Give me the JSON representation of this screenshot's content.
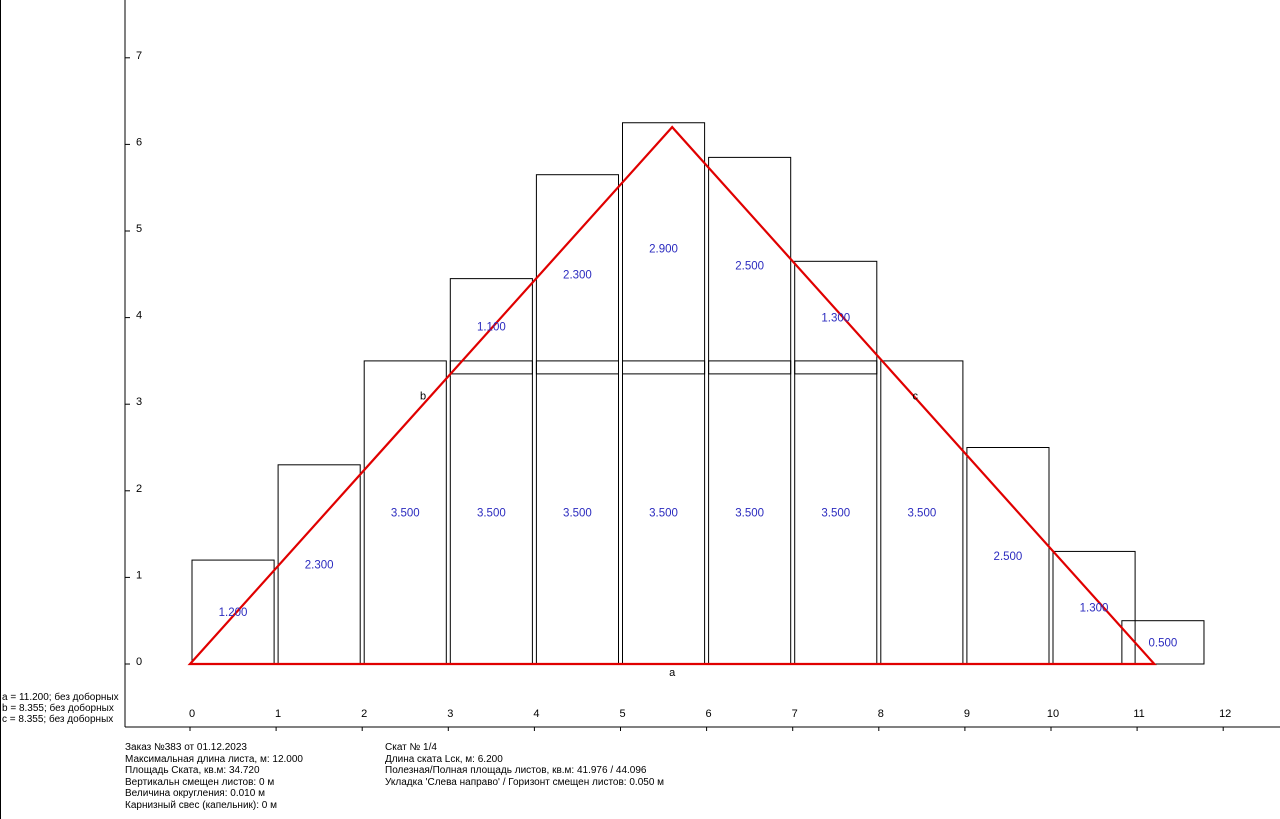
{
  "chart_data": {
    "type": "diagram",
    "x_ticks": [
      0,
      1,
      2,
      3,
      4,
      5,
      6,
      7,
      8,
      9,
      10,
      11,
      12
    ],
    "y_ticks": [
      0,
      1,
      2,
      3,
      4,
      5,
      6,
      7
    ],
    "triangle": {
      "color": "#e00000",
      "vertices": [
        [
          0,
          0
        ],
        [
          5.6,
          6.2
        ],
        [
          11.2,
          0
        ]
      ],
      "labels": {
        "a": "a",
        "b": "b",
        "c": "c"
      },
      "label_points": {
        "a": [
          5.6,
          0
        ],
        "b": [
          2.8,
          3.1
        ],
        "c": [
          8.4,
          3.1
        ]
      }
    },
    "sheets": [
      {
        "x": 0.0,
        "w": 1.0,
        "y0": 0.0,
        "h": 1.2,
        "label": "1.200"
      },
      {
        "x": 1.0,
        "w": 1.0,
        "y0": 0.0,
        "h": 2.3,
        "label": "2.300"
      },
      {
        "x": 2.0,
        "w": 1.0,
        "y0": 0.0,
        "h": 3.5,
        "label": "3.500"
      },
      {
        "x": 3.0,
        "w": 1.0,
        "y0": 0.0,
        "h": 3.5,
        "label": "3.500"
      },
      {
        "x": 4.0,
        "w": 1.0,
        "y0": 0.0,
        "h": 3.5,
        "label": "3.500"
      },
      {
        "x": 5.0,
        "w": 1.0,
        "y0": 0.0,
        "h": 3.5,
        "label": "3.500"
      },
      {
        "x": 6.0,
        "w": 1.0,
        "y0": 0.0,
        "h": 3.5,
        "label": "3.500"
      },
      {
        "x": 7.0,
        "w": 1.0,
        "y0": 0.0,
        "h": 3.5,
        "label": "3.500"
      },
      {
        "x": 8.0,
        "w": 1.0,
        "y0": 0.0,
        "h": 3.5,
        "label": "3.500"
      },
      {
        "x": 9.0,
        "w": 1.0,
        "y0": 0.0,
        "h": 2.5,
        "label": "2.500"
      },
      {
        "x": 10.0,
        "w": 1.0,
        "y0": 0.0,
        "h": 1.3,
        "label": "1.300"
      },
      {
        "x": 10.8,
        "w": 1.0,
        "y0": 0.0,
        "h": 0.5,
        "label": "0.500"
      },
      {
        "x": 3.0,
        "w": 1.0,
        "y0": 3.35,
        "h": 1.1,
        "label": "1.100"
      },
      {
        "x": 4.0,
        "w": 1.0,
        "y0": 3.35,
        "h": 2.3,
        "label": "2.300"
      },
      {
        "x": 5.0,
        "w": 1.0,
        "y0": 3.35,
        "h": 2.9,
        "label": "2.900"
      },
      {
        "x": 6.0,
        "w": 1.0,
        "y0": 3.35,
        "h": 2.5,
        "label": "2.500"
      },
      {
        "x": 7.0,
        "w": 1.0,
        "y0": 3.35,
        "h": 1.3,
        "label": "1.300"
      }
    ]
  },
  "legend": {
    "lines": [
      "a = 11.200; без доборных",
      "b = 8.355; без доборных",
      "c = 8.355; без доборных"
    ]
  },
  "info_left": {
    "lines": [
      "Заказ №383 от 01.12.2023",
      "Максимальная длина листа, м: 12.000",
      "Площадь Ската, кв.м:  34.720",
      "Вертикальн смещен листов: 0 м",
      "Величина округления: 0.010 м",
      "Карнизный свес (капельник): 0 м"
    ]
  },
  "info_right": {
    "lines": [
      "Скат № 1/4",
      "Длина ската Lск, м: 6.200",
      "Полезная/Полная площадь листов, кв.м:  41.976 / 44.096",
      "Укладка 'Слева направо' / Горизонт смещен листов: 0.050 м"
    ]
  }
}
